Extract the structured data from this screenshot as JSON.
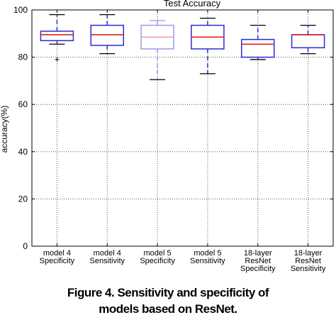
{
  "caption": {
    "line1": "Figure 4. Sensitivity and specificity of",
    "line2": "models based on ResNet."
  },
  "chart_data": {
    "type": "box",
    "title": "Test Accuracy",
    "xlabel": "",
    "ylabel": "accuracy(%)",
    "ylim": [
      0,
      100
    ],
    "yticks": [
      "0",
      "20",
      "40",
      "60",
      "80",
      "100"
    ],
    "grid": true,
    "categories": [
      [
        "model 4",
        "Specificity"
      ],
      [
        "model 4",
        "Sensitivity"
      ],
      [
        "model 5",
        "Specificity"
      ],
      [
        "model 5",
        "Sensitivity"
      ],
      [
        "18-layer",
        "ResNet",
        "Specificity"
      ],
      [
        "18-layer",
        "ResNet",
        "Sensitivity"
      ]
    ],
    "boxes": [
      {
        "whisker_low": 85.5,
        "q1": 87,
        "median": 89.5,
        "q3": 91,
        "whisker_high": 98,
        "outliers": [
          79
        ],
        "faded": false
      },
      {
        "whisker_low": 81.5,
        "q1": 85,
        "median": 89.5,
        "q3": 93.5,
        "whisker_high": 98,
        "outliers": [],
        "faded": false
      },
      {
        "whisker_low": 70.5,
        "q1": 83.5,
        "median": 88.5,
        "q3": 93.5,
        "whisker_high": 95.5,
        "outliers": [],
        "faded": true
      },
      {
        "whisker_low": 73,
        "q1": 83.5,
        "median": 88.5,
        "q3": 93.5,
        "whisker_high": 96.5,
        "outliers": [],
        "faded": false
      },
      {
        "whisker_low": 79,
        "q1": 80,
        "median": 85.5,
        "q3": 87.5,
        "whisker_high": 93.5,
        "outliers": [],
        "faded": false
      },
      {
        "whisker_low": 81.5,
        "q1": 84,
        "median": 89.5,
        "q3": 89.5,
        "whisker_high": 93.5,
        "outliers": [],
        "faded": false
      }
    ],
    "colors": {
      "box": "#2b2bd6",
      "median": "#e02020",
      "faded_box": "#9a9ae8",
      "faded_median": "#f0a0a0",
      "grid": "#555555"
    }
  }
}
